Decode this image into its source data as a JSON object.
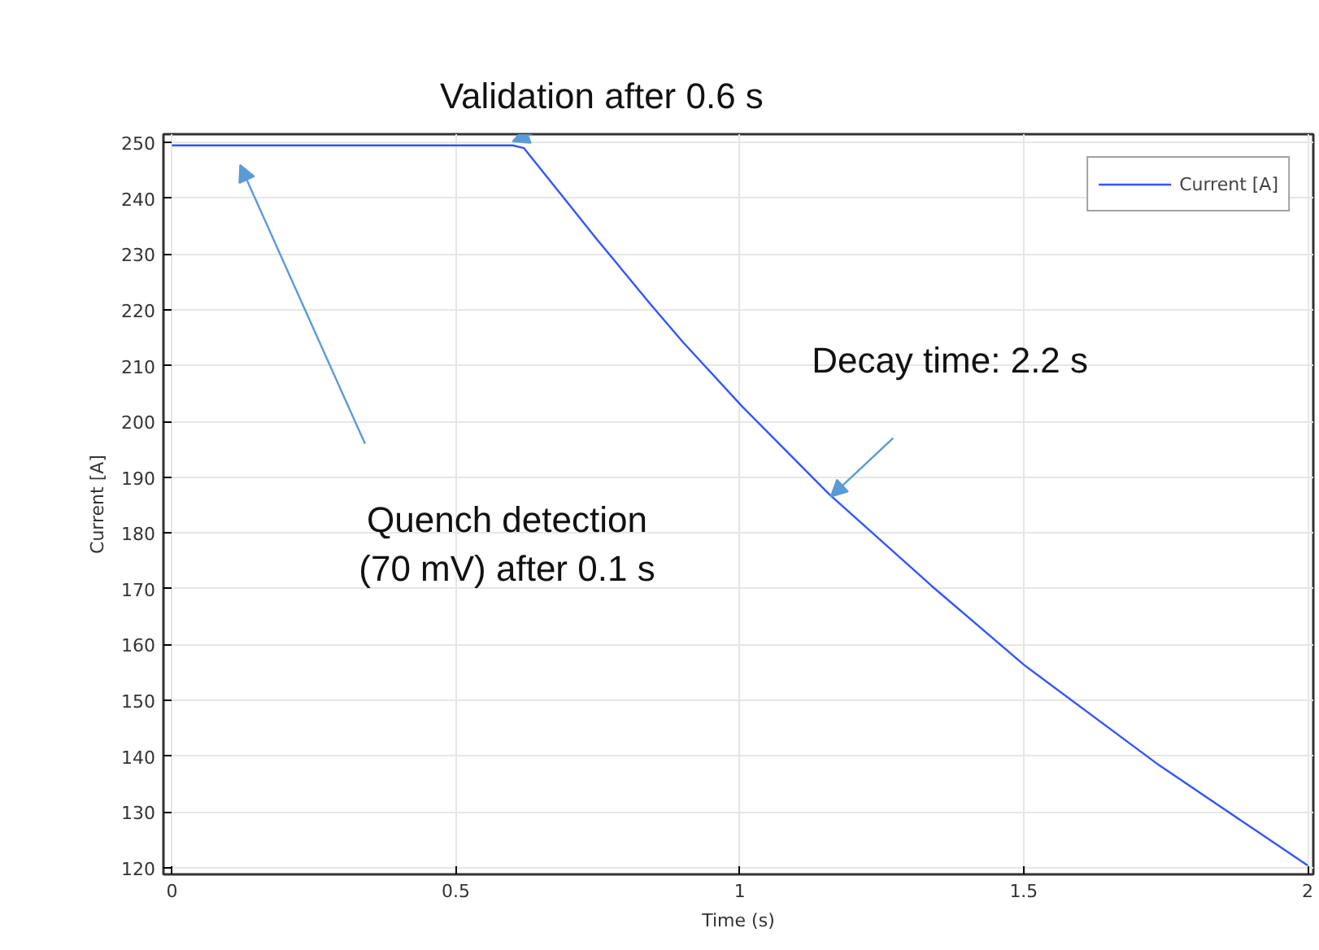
{
  "chart_data": {
    "type": "line",
    "xlabel": "Time (s)",
    "ylabel": "Current [A]",
    "x": [
      0,
      0.1,
      0.3,
      0.5,
      0.6,
      0.62,
      0.748,
      0.843,
      0.9,
      1.005,
      1.157,
      1.338,
      1.5,
      1.738,
      2.0
    ],
    "series": [
      {
        "name": "Current [A]",
        "color": "#3355ff",
        "values": [
          249.5,
          249.5,
          249.5,
          249.5,
          249.5,
          249,
          232.7,
          221.0,
          214.2,
          202.6,
          187.0,
          170.5,
          156.4,
          138.4,
          120.4
        ]
      }
    ],
    "xlim": [
      -0.015,
      2.01
    ],
    "ylim": [
      118.8,
      251.5
    ],
    "xticks": [
      0,
      0.5,
      1,
      1.5,
      2
    ],
    "yticks": [
      120,
      130,
      140,
      150,
      160,
      170,
      180,
      190,
      200,
      210,
      220,
      230,
      240,
      250
    ],
    "grid": true,
    "legend": "top right",
    "marker": "none",
    "line_style": "solid",
    "annotations": [
      "Validation after 0.6 s",
      "Decay time: 2.2 s",
      "Quench detection\n(70 mV) after 0.1 s"
    ]
  }
}
